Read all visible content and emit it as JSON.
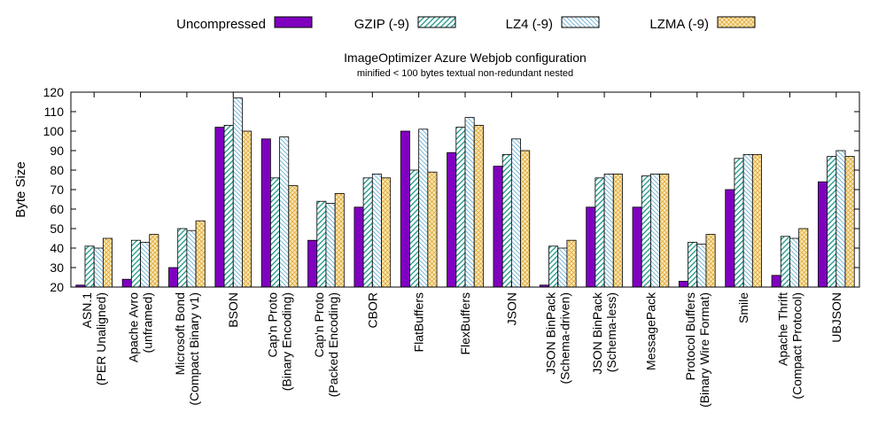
{
  "chart_data": {
    "type": "bar",
    "title": "ImageOptimizer Azure Webjob configuration",
    "subtitle": "minified < 100 bytes textual non-redundant nested",
    "xlabel": "",
    "ylabel": "Byte Size",
    "ylim": [
      20,
      120
    ],
    "yticks": [
      20,
      30,
      40,
      50,
      60,
      70,
      80,
      90,
      100,
      110,
      120
    ],
    "legend_position": "top",
    "grid": false,
    "categories": [
      [
        "ASN.1",
        "(PER Unaligned)"
      ],
      [
        "Apache Avro",
        "(unframed)"
      ],
      [
        "Microsoft Bond",
        "(Compact Binary v1)"
      ],
      [
        "BSON"
      ],
      [
        "Cap'n Proto",
        "(Binary Encoding)"
      ],
      [
        "Cap'n Proto",
        "(Packed Encoding)"
      ],
      [
        "CBOR"
      ],
      [
        "FlatBuffers"
      ],
      [
        "FlexBuffers"
      ],
      [
        "JSON"
      ],
      [
        "JSON BinPack",
        "(Schema-driven)"
      ],
      [
        "JSON BinPack",
        "(Schema-less)"
      ],
      [
        "MessagePack"
      ],
      [
        "Protocol Buffers",
        "(Binary Wire Format)"
      ],
      [
        "Smile"
      ],
      [
        "Apache Thrift",
        "(Compact Protocol)"
      ],
      [
        "UBJSON"
      ]
    ],
    "series": [
      {
        "name": "Uncompressed",
        "color": "#8000c0",
        "pattern": "solid",
        "values": [
          21,
          24,
          30,
          102,
          96,
          44,
          61,
          100,
          89,
          82,
          21,
          61,
          61,
          23,
          70,
          26,
          74
        ]
      },
      {
        "name": "GZIP (-9)",
        "color": "#2a9d8f",
        "pattern": "hatch-left",
        "values": [
          41,
          44,
          50,
          103,
          76,
          64,
          76,
          80,
          102,
          88,
          41,
          76,
          77,
          43,
          86,
          46,
          87
        ]
      },
      {
        "name": "LZ4 (-9)",
        "color": "#7ab8d6",
        "pattern": "hatch-right",
        "values": [
          40,
          43,
          49,
          117,
          97,
          63,
          78,
          101,
          107,
          96,
          40,
          78,
          78,
          42,
          88,
          45,
          90
        ]
      },
      {
        "name": "LZMA (-9)",
        "color": "#d8a028",
        "pattern": "crosshatch",
        "values": [
          45,
          47,
          54,
          100,
          72,
          68,
          76,
          79,
          103,
          90,
          44,
          78,
          78,
          47,
          88,
          50,
          87
        ]
      }
    ]
  }
}
